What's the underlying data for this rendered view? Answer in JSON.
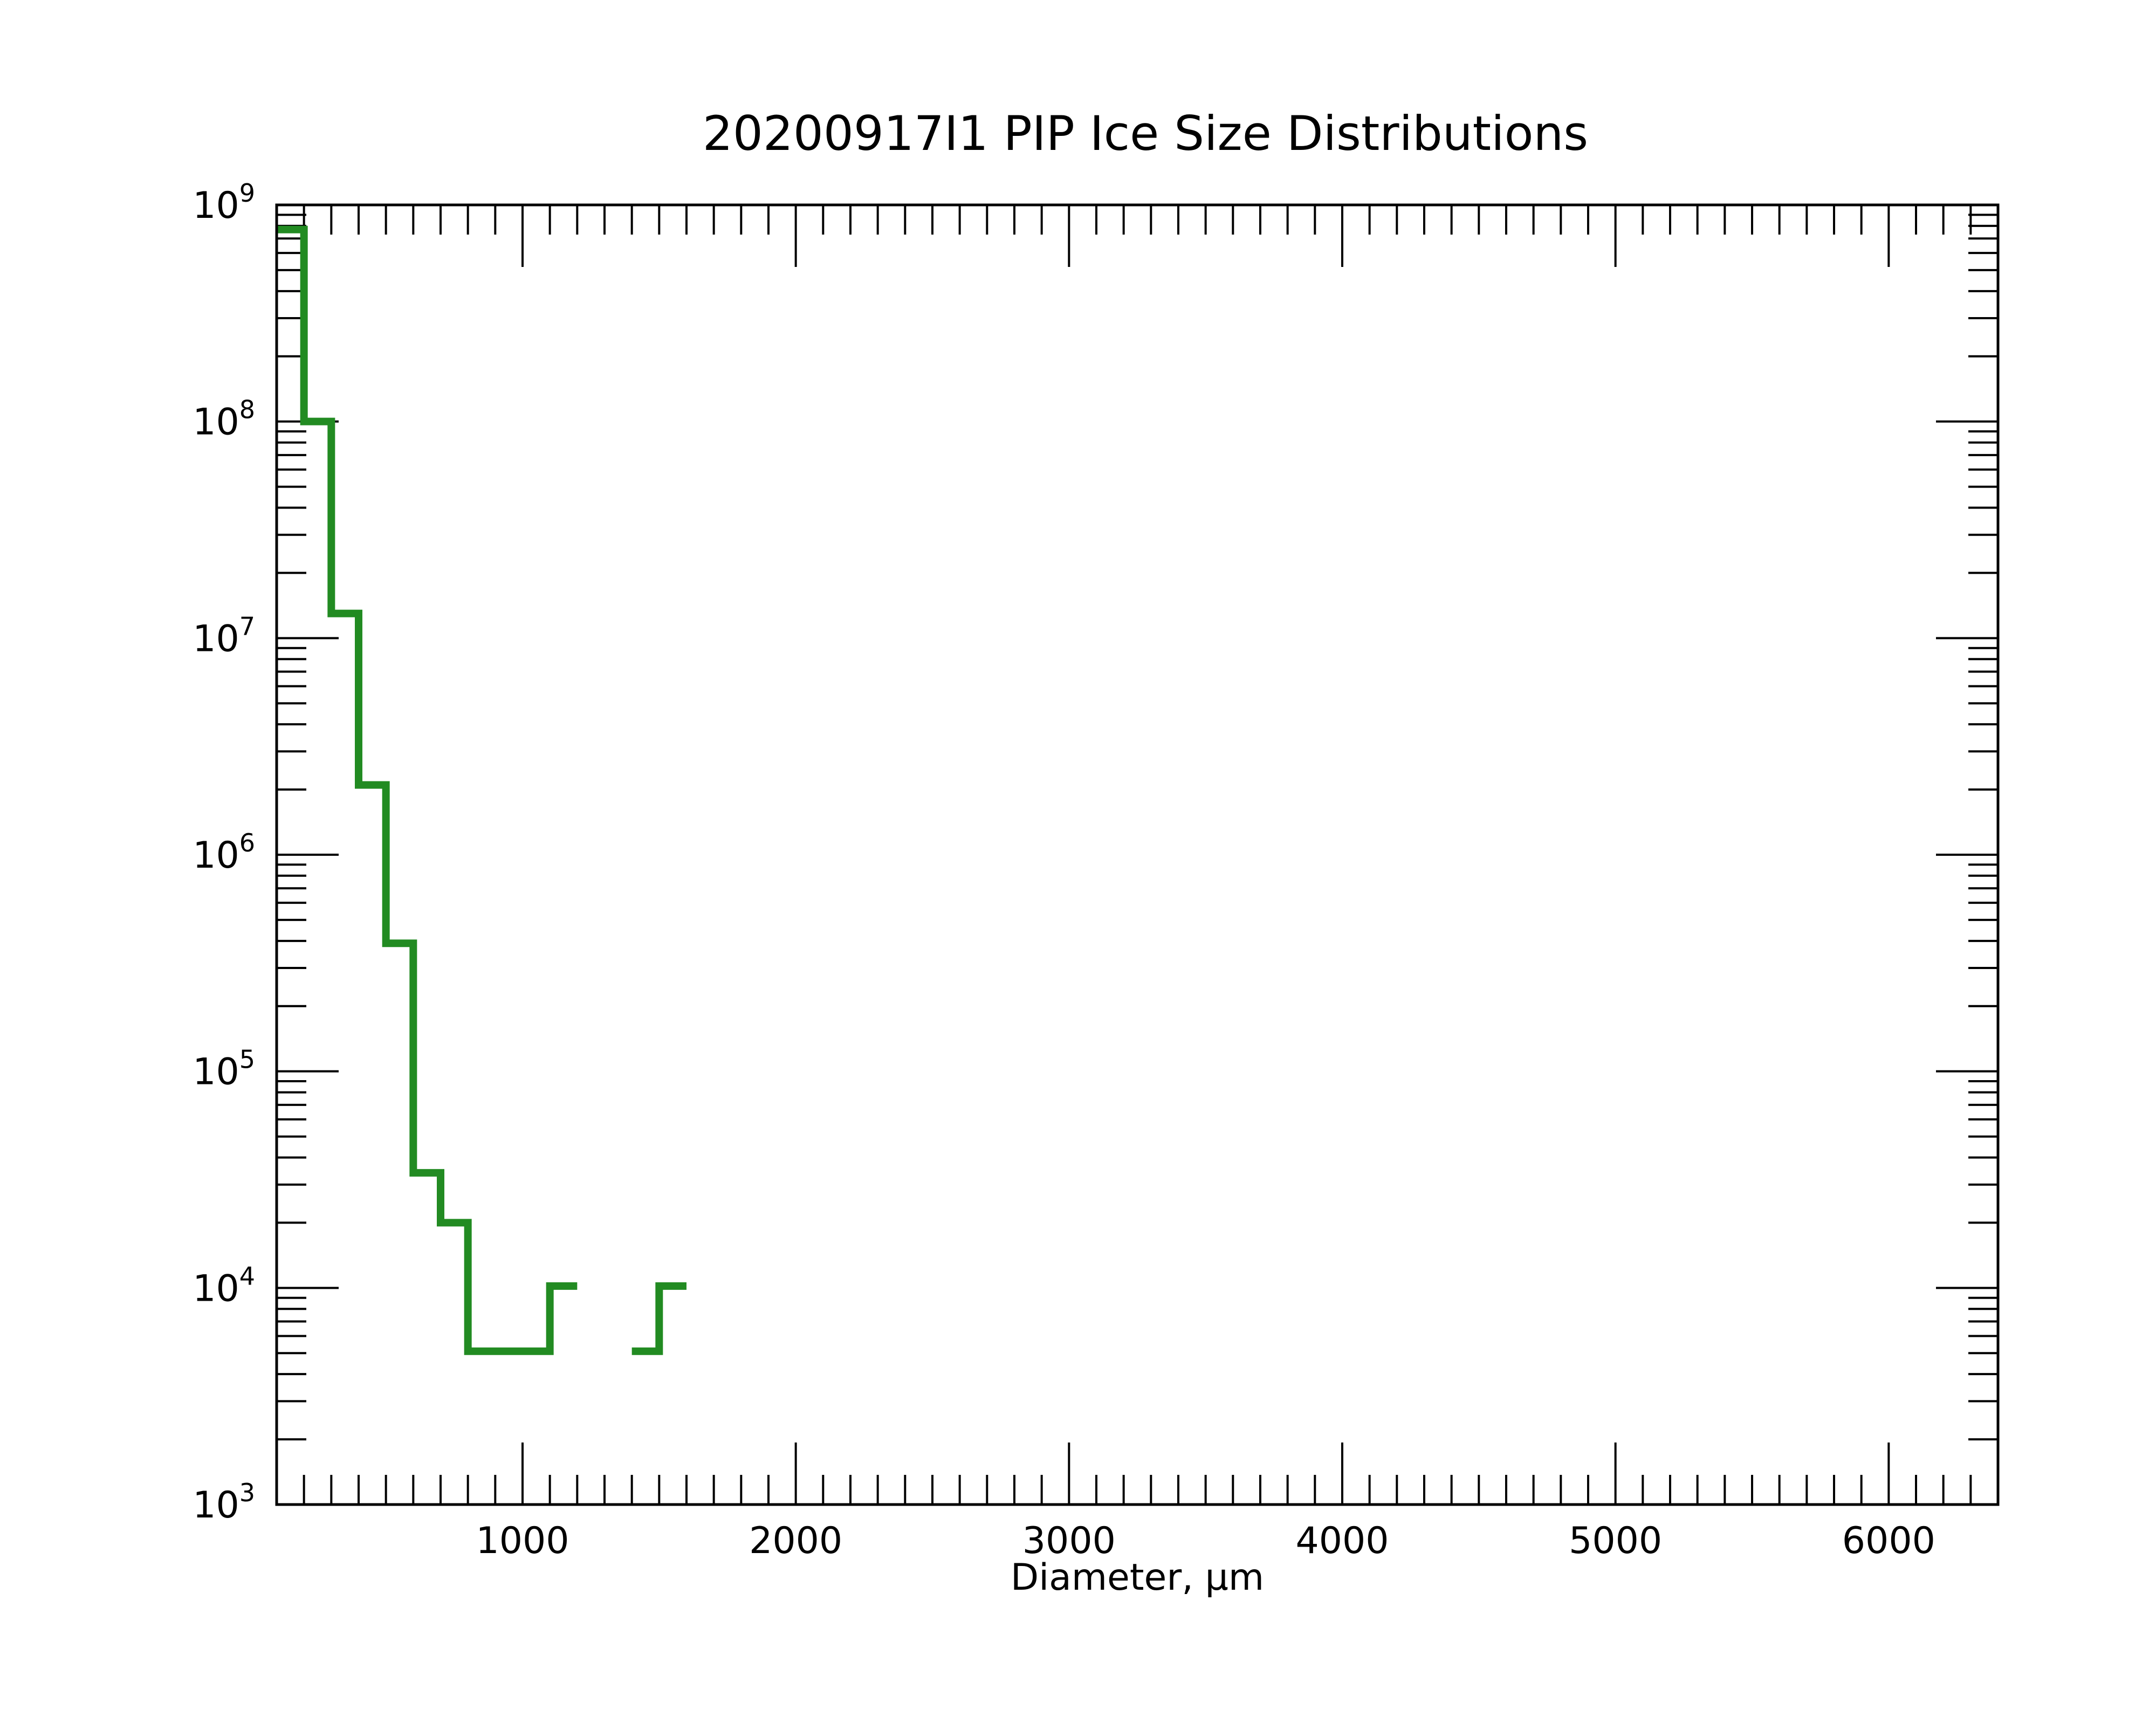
{
  "chart_data": {
    "type": "line",
    "style": "step",
    "title": "20200917I1 PIP Ice Size Distributions",
    "xlabel": "Diameter, μm",
    "ylabel": "",
    "xlim": [
      100,
      6400
    ],
    "ylim": [
      1000,
      1000000000
    ],
    "yscale": "log",
    "grid": false,
    "legend": "none",
    "x_tick_labels": [
      "1000",
      "2000",
      "3000",
      "4000",
      "5000",
      "6000"
    ],
    "y_tick_labels": [
      {
        "base": "10",
        "exp": "3"
      },
      {
        "base": "10",
        "exp": "4"
      },
      {
        "base": "10",
        "exp": "5"
      },
      {
        "base": "10",
        "exp": "6"
      },
      {
        "base": "10",
        "exp": "7"
      },
      {
        "base": "10",
        "exp": "8"
      },
      {
        "base": "10",
        "exp": "9"
      }
    ],
    "series": [
      {
        "color": "#228b22",
        "bin_width": 100,
        "bins": [
          {
            "x": 150,
            "y": 770000000
          },
          {
            "x": 250,
            "y": 100000000
          },
          {
            "x": 350,
            "y": 13000000
          },
          {
            "x": 450,
            "y": 2100000
          },
          {
            "x": 550,
            "y": 390000
          },
          {
            "x": 650,
            "y": 34000
          },
          {
            "x": 750,
            "y": 20000
          },
          {
            "x": 850,
            "y": 5100
          },
          {
            "x": 950,
            "y": 5100
          },
          {
            "x": 1050,
            "y": 5100
          },
          {
            "x": 1150,
            "y": 10200
          },
          {
            "x": 1250,
            "y": null
          },
          {
            "x": 1350,
            "y": null
          },
          {
            "x": 1450,
            "y": 5100
          },
          {
            "x": 1550,
            "y": 10200
          }
        ]
      }
    ]
  }
}
